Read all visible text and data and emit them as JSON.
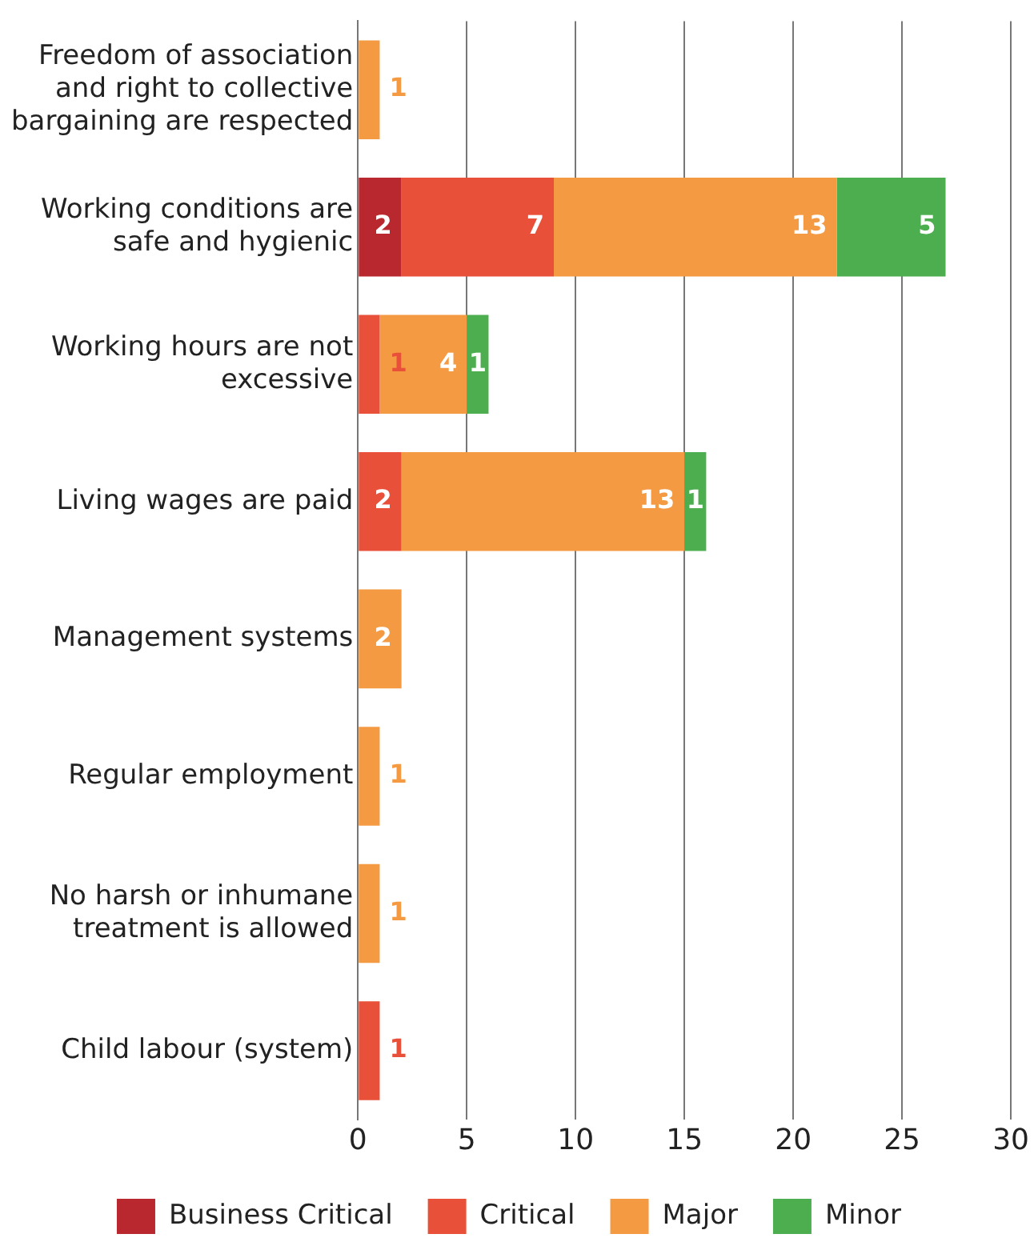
{
  "chart_data": {
    "type": "bar",
    "orientation": "horizontal",
    "stacked": true,
    "categories": [
      "Freedom of association and right to collective bargaining are respected",
      "Working conditions are safe and hygienic",
      "Working hours are not excessive",
      "Living wages are paid",
      "Management systems",
      "Regular employment",
      "No harsh or inhumane treatment is allowed",
      "Child labour (system)"
    ],
    "series": [
      {
        "name": "Business Critical",
        "color": "#b8282e",
        "values": [
          null,
          2,
          null,
          null,
          null,
          null,
          null,
          null
        ]
      },
      {
        "name": "Critical",
        "color": "#e9503a",
        "values": [
          null,
          7,
          1,
          2,
          null,
          null,
          null,
          1
        ]
      },
      {
        "name": "Major",
        "color": "#f49a42",
        "values": [
          1,
          13,
          4,
          13,
          2,
          1,
          1,
          null
        ]
      },
      {
        "name": "Minor",
        "color": "#4cae4f",
        "values": [
          null,
          5,
          1,
          1,
          null,
          null,
          null,
          null
        ]
      }
    ],
    "xlim": [
      0,
      30
    ],
    "xticks": [
      0,
      5,
      10,
      15,
      20,
      25,
      30
    ],
    "grid": "x",
    "legend": "bottom",
    "data_labels": true
  }
}
